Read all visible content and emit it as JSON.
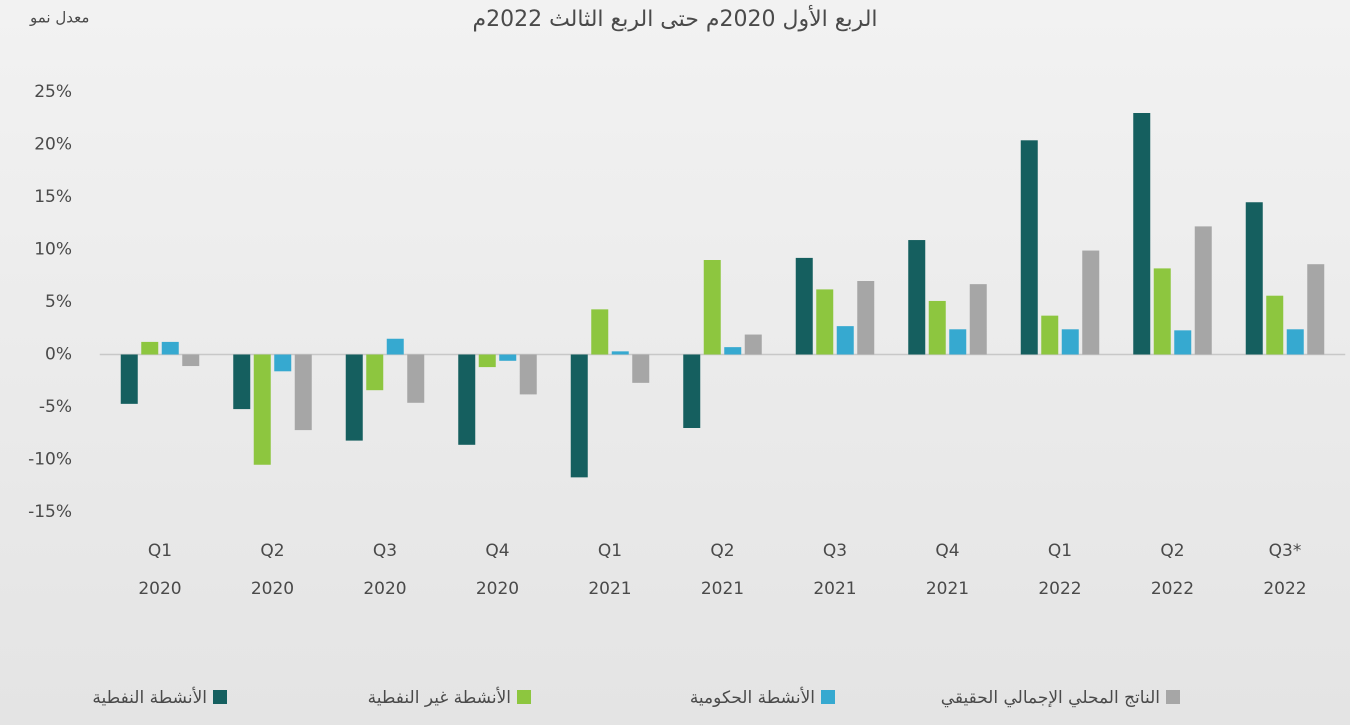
{
  "chart_data": {
    "type": "bar",
    "title": "الربع الأول 2020م حتى الربع الثالث 2022م",
    "y_label": "معدل نمو",
    "categories": [
      [
        "Q1",
        "2020"
      ],
      [
        "Q2",
        "2020"
      ],
      [
        "Q3",
        "2020"
      ],
      [
        "Q4",
        "2020"
      ],
      [
        "Q1",
        "2021"
      ],
      [
        "Q2",
        "2021"
      ],
      [
        "Q3",
        "2021"
      ],
      [
        "Q4",
        "2021"
      ],
      [
        "Q1",
        "2022"
      ],
      [
        "Q2",
        "2022"
      ],
      [
        "Q3*",
        "2022"
      ]
    ],
    "series": [
      {
        "name": "الأنشطة النفطية",
        "color": "#155f5f",
        "values": [
          -4.7,
          -5.2,
          -8.2,
          -8.6,
          -11.7,
          -7.0,
          9.2,
          10.9,
          20.4,
          23.0,
          14.5
        ]
      },
      {
        "name": "الأنشطة غير النفطية",
        "color": "#8dc63f",
        "values": [
          1.2,
          -10.5,
          -3.4,
          -1.2,
          4.3,
          9.0,
          6.2,
          5.1,
          3.7,
          8.2,
          5.6
        ]
      },
      {
        "name": "الأنشطة الحكومية",
        "color": "#36a9d0",
        "values": [
          1.2,
          -1.6,
          1.5,
          -0.6,
          0.3,
          0.7,
          2.7,
          2.4,
          2.4,
          2.3,
          2.4
        ]
      },
      {
        "name": "الناتج المحلي الإجمالي الحقيقي",
        "color": "#a6a6a6",
        "values": [
          -1.1,
          -7.2,
          -4.6,
          -3.8,
          -2.7,
          1.9,
          7.0,
          6.7,
          9.9,
          12.2,
          8.6
        ]
      }
    ],
    "ylim": [
      -15,
      25
    ],
    "yticks": [
      {
        "value": -15,
        "label": "-15%"
      },
      {
        "value": -10,
        "label": "-10%"
      },
      {
        "value": -5,
        "label": "-5%"
      },
      {
        "value": 0,
        "label": "0%"
      },
      {
        "value": 5,
        "label": "5%"
      },
      {
        "value": 10,
        "label": "10%"
      },
      {
        "value": 15,
        "label": "15%"
      },
      {
        "value": 20,
        "label": "20%"
      },
      {
        "value": 25,
        "label": "25%"
      }
    ]
  }
}
